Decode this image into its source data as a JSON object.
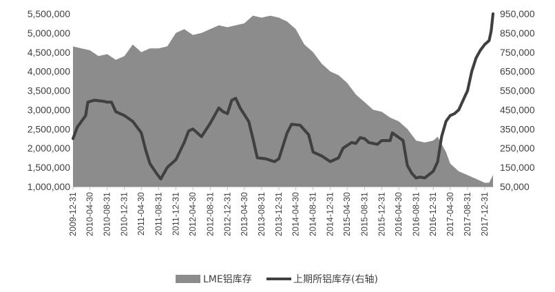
{
  "chart_data": {
    "type": "area",
    "x_tick_labels": [
      "2009-12-31",
      "2010-04-30",
      "2010-08-31",
      "2010-12-31",
      "2011-04-30",
      "2011-08-31",
      "2011-12-31",
      "2012-04-30",
      "2012-08-31",
      "2012-12-31",
      "2013-04-30",
      "2013-08-31",
      "2013-12-31",
      "2014-04-30",
      "2014-08-31",
      "2014-12-31",
      "2015-04-30",
      "2015-08-31",
      "2015-12-31",
      "2016-04-30",
      "2016-08-31",
      "2016-12-31",
      "2017-04-30",
      "2017-08-31",
      "2017-12-31"
    ],
    "y_left": {
      "ticks": [
        "1,000,000",
        "1,500,000",
        "2,000,000",
        "2,500,000",
        "3,000,000",
        "3,500,000",
        "4,000,000",
        "4,500,000",
        "5,000,000",
        "5,500,000"
      ],
      "min": 1000000,
      "max": 5500000
    },
    "y_right": {
      "ticks": [
        "50,000",
        "150,000",
        "250,000",
        "350,000",
        "450,000",
        "550,000",
        "650,000",
        "750,000",
        "850,000",
        "950,000"
      ],
      "min": 50000,
      "max": 950000
    },
    "grid": false,
    "legend_position": "bottom",
    "series": [
      {
        "name": "LME铝库存",
        "kind": "area",
        "axis": "left",
        "color": "#8c8c8c",
        "points": [
          [
            "2009-12-31",
            4650000
          ],
          [
            "2010-02-28",
            4600000
          ],
          [
            "2010-04-30",
            4550000
          ],
          [
            "2010-06-30",
            4400000
          ],
          [
            "2010-08-31",
            4450000
          ],
          [
            "2010-10-31",
            4300000
          ],
          [
            "2010-12-31",
            4400000
          ],
          [
            "2011-02-28",
            4700000
          ],
          [
            "2011-04-30",
            4500000
          ],
          [
            "2011-06-30",
            4600000
          ],
          [
            "2011-08-31",
            4600000
          ],
          [
            "2011-10-31",
            4650000
          ],
          [
            "2011-12-31",
            5000000
          ],
          [
            "2012-02-28",
            5100000
          ],
          [
            "2012-04-30",
            4950000
          ],
          [
            "2012-06-30",
            5000000
          ],
          [
            "2012-08-31",
            5100000
          ],
          [
            "2012-10-31",
            5200000
          ],
          [
            "2012-12-31",
            5150000
          ],
          [
            "2013-02-28",
            5200000
          ],
          [
            "2013-04-30",
            5250000
          ],
          [
            "2013-06-30",
            5450000
          ],
          [
            "2013-08-31",
            5400000
          ],
          [
            "2013-10-31",
            5450000
          ],
          [
            "2013-12-31",
            5400000
          ],
          [
            "2014-02-28",
            5300000
          ],
          [
            "2014-04-30",
            5100000
          ],
          [
            "2014-06-30",
            4700000
          ],
          [
            "2014-08-31",
            4500000
          ],
          [
            "2014-10-31",
            4200000
          ],
          [
            "2014-12-31",
            4000000
          ],
          [
            "2015-02-28",
            3900000
          ],
          [
            "2015-04-30",
            3700000
          ],
          [
            "2015-06-30",
            3400000
          ],
          [
            "2015-08-31",
            3200000
          ],
          [
            "2015-10-31",
            3000000
          ],
          [
            "2015-12-31",
            2950000
          ],
          [
            "2016-02-28",
            2800000
          ],
          [
            "2016-04-30",
            2700000
          ],
          [
            "2016-06-30",
            2500000
          ],
          [
            "2016-08-31",
            2200000
          ],
          [
            "2016-10-31",
            2150000
          ],
          [
            "2016-12-31",
            2200000
          ],
          [
            "2017-01-31",
            2300000
          ],
          [
            "2017-03-31",
            1900000
          ],
          [
            "2017-04-30",
            1600000
          ],
          [
            "2017-06-30",
            1400000
          ],
          [
            "2017-08-31",
            1300000
          ],
          [
            "2017-10-31",
            1200000
          ],
          [
            "2017-12-31",
            1100000
          ],
          [
            "2018-01-31",
            1100000
          ],
          [
            "2018-02-28",
            1300000
          ]
        ]
      },
      {
        "name": "上期所铝库存(右轴)",
        "kind": "line",
        "axis": "right",
        "color": "#404040",
        "points": [
          [
            "2009-12-31",
            300000
          ],
          [
            "2010-01-31",
            360000
          ],
          [
            "2010-03-31",
            420000
          ],
          [
            "2010-04-15",
            490000
          ],
          [
            "2010-05-31",
            500000
          ],
          [
            "2010-07-31",
            495000
          ],
          [
            "2010-08-31",
            490000
          ],
          [
            "2010-09-30",
            490000
          ],
          [
            "2010-10-31",
            440000
          ],
          [
            "2010-12-31",
            420000
          ],
          [
            "2011-02-28",
            390000
          ],
          [
            "2011-04-30",
            330000
          ],
          [
            "2011-05-31",
            240000
          ],
          [
            "2011-06-30",
            170000
          ],
          [
            "2011-08-15",
            120000
          ],
          [
            "2011-09-15",
            90000
          ],
          [
            "2011-10-31",
            150000
          ],
          [
            "2011-12-31",
            190000
          ],
          [
            "2012-02-28",
            280000
          ],
          [
            "2012-03-31",
            340000
          ],
          [
            "2012-04-30",
            350000
          ],
          [
            "2012-05-31",
            330000
          ],
          [
            "2012-06-30",
            310000
          ],
          [
            "2012-08-31",
            380000
          ],
          [
            "2012-10-31",
            460000
          ],
          [
            "2012-11-30",
            440000
          ],
          [
            "2012-12-31",
            430000
          ],
          [
            "2013-01-31",
            500000
          ],
          [
            "2013-02-28",
            510000
          ],
          [
            "2013-03-31",
            460000
          ],
          [
            "2013-05-31",
            390000
          ],
          [
            "2013-06-30",
            300000
          ],
          [
            "2013-07-31",
            200000
          ],
          [
            "2013-09-30",
            195000
          ],
          [
            "2013-11-30",
            180000
          ],
          [
            "2013-12-31",
            195000
          ],
          [
            "2014-02-28",
            330000
          ],
          [
            "2014-03-31",
            375000
          ],
          [
            "2014-05-31",
            370000
          ],
          [
            "2014-07-31",
            320000
          ],
          [
            "2014-08-31",
            230000
          ],
          [
            "2014-10-31",
            210000
          ],
          [
            "2014-12-31",
            180000
          ],
          [
            "2015-02-28",
            200000
          ],
          [
            "2015-03-31",
            250000
          ],
          [
            "2015-05-31",
            280000
          ],
          [
            "2015-06-30",
            275000
          ],
          [
            "2015-07-31",
            305000
          ],
          [
            "2015-08-31",
            300000
          ],
          [
            "2015-09-30",
            280000
          ],
          [
            "2015-11-30",
            270000
          ],
          [
            "2015-12-31",
            290000
          ],
          [
            "2016-01-31",
            290000
          ],
          [
            "2016-02-29",
            290000
          ],
          [
            "2016-03-15",
            330000
          ],
          [
            "2016-05-31",
            290000
          ],
          [
            "2016-06-30",
            160000
          ],
          [
            "2016-07-31",
            120000
          ],
          [
            "2016-08-31",
            95000
          ],
          [
            "2016-09-30",
            100000
          ],
          [
            "2016-10-31",
            95000
          ],
          [
            "2016-12-31",
            130000
          ],
          [
            "2017-01-31",
            180000
          ],
          [
            "2017-02-28",
            310000
          ],
          [
            "2017-03-31",
            390000
          ],
          [
            "2017-04-30",
            420000
          ],
          [
            "2017-05-31",
            430000
          ],
          [
            "2017-06-30",
            450000
          ],
          [
            "2017-07-31",
            500000
          ],
          [
            "2017-08-31",
            550000
          ],
          [
            "2017-09-30",
            650000
          ],
          [
            "2017-10-31",
            720000
          ],
          [
            "2017-11-30",
            760000
          ],
          [
            "2017-12-31",
            790000
          ],
          [
            "2018-01-31",
            810000
          ],
          [
            "2018-02-15",
            860000
          ],
          [
            "2018-02-28",
            950000
          ]
        ]
      }
    ]
  }
}
